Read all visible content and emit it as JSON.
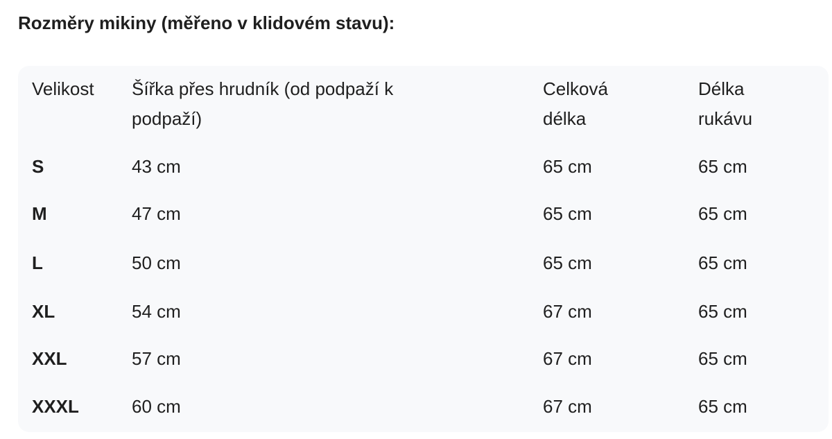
{
  "title": "Rozměry mikiny (měřeno v klidovém stavu):",
  "table": {
    "headers": [
      "Velikost",
      "Šířka přes hrudník (od podpaží k podpaží)",
      "Celková délka",
      "Délka rukávu"
    ],
    "rows": [
      [
        "S",
        "43 cm",
        "65 cm",
        "65 cm"
      ],
      [
        "M",
        "47 cm",
        "65 cm",
        "65 cm"
      ],
      [
        "L",
        "50 cm",
        "65 cm",
        "65 cm"
      ],
      [
        "XL",
        "54 cm",
        "67 cm",
        "65 cm"
      ],
      [
        "XXL",
        "57 cm",
        "67 cm",
        "65 cm"
      ],
      [
        "XXXL",
        "60 cm",
        "67 cm",
        "65 cm"
      ]
    ]
  }
}
